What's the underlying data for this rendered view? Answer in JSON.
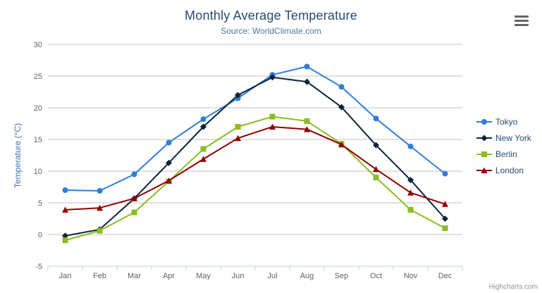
{
  "chart_data": {
    "type": "line",
    "title": "Monthly Average Temperature",
    "subtitle": "Source: WorldClimate.com",
    "categories": [
      "Jan",
      "Feb",
      "Mar",
      "Apr",
      "May",
      "Jun",
      "Jul",
      "Aug",
      "Sep",
      "Oct",
      "Nov",
      "Dec"
    ],
    "xlabel": "",
    "ylabel": "Temperature (°C)",
    "ylim": [
      -5,
      30
    ],
    "ytick_step": 5,
    "yticks": [
      30,
      25,
      20,
      15,
      10,
      5,
      0,
      -5
    ],
    "grid": true,
    "legend_position": "right",
    "series": [
      {
        "name": "Tokyo",
        "color": "#2f7ed8",
        "marker": "circle",
        "values": [
          7.0,
          6.9,
          9.5,
          14.5,
          18.2,
          21.5,
          25.2,
          26.5,
          23.3,
          18.3,
          13.9,
          9.6
        ]
      },
      {
        "name": "New York",
        "color": "#0d233a",
        "marker": "diamond",
        "values": [
          -0.2,
          0.8,
          5.7,
          11.3,
          17.0,
          22.0,
          24.8,
          24.1,
          20.1,
          14.1,
          8.6,
          2.5
        ]
      },
      {
        "name": "Berlin",
        "color": "#8bbc21",
        "marker": "square",
        "values": [
          -0.9,
          0.6,
          3.5,
          8.4,
          13.5,
          17.0,
          18.6,
          17.9,
          14.3,
          9.0,
          3.9,
          1.0
        ]
      },
      {
        "name": "London",
        "color": "#910000",
        "marker": "triangle",
        "values": [
          3.9,
          4.2,
          5.7,
          8.5,
          11.9,
          15.2,
          17.0,
          16.6,
          14.2,
          10.3,
          6.6,
          4.8
        ]
      }
    ]
  },
  "credits": "Highcharts.com",
  "colors": {
    "title": "#274b6d",
    "subtitle": "#4d759e",
    "axis_title": "#4572a7",
    "tick_label": "#606060",
    "grid_line": "#c0c0c0",
    "axis_line": "#c0d0e0",
    "legend_text": "#274b6d",
    "credits": "#909090",
    "export_icon": "#666666"
  }
}
